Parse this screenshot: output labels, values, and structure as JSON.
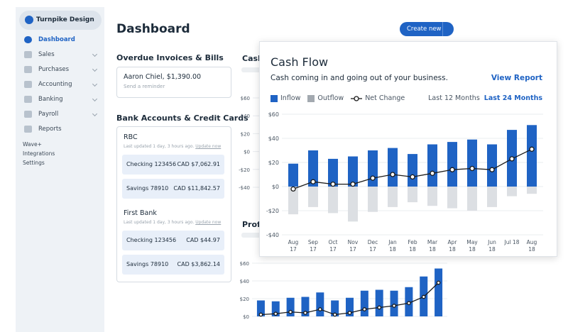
{
  "sidebar": {
    "brand": "Turnpike Design",
    "items": [
      "Dashboard",
      "Sales",
      "Purchases",
      "Accounting",
      "Banking",
      "Payroll",
      "Reports"
    ],
    "active": 0,
    "extras": [
      "Wave+",
      "Integrations",
      "Settings"
    ]
  },
  "header": {
    "title": "Dashboard",
    "button": "Create new"
  },
  "overdue": {
    "title": "Overdue Invoices & Bills",
    "item": "Aaron Chiel, $1,390.00",
    "action": "Send a reminder"
  },
  "banks": {
    "title": "Bank Accounts & Credit Cards",
    "list": [
      {
        "name": "RBC",
        "updated": "Last updated 1 day, 3 hours ago.",
        "update": "Update now",
        "accounts": [
          {
            "name": "Checking 123456",
            "balance": "CAD $7,062.91"
          },
          {
            "name": "Savings 78910",
            "balance": "CAD $11,842.57"
          }
        ]
      },
      {
        "name": "First Bank",
        "updated": "Last updated 1 day, 3 hours ago.",
        "update": "Update now",
        "accounts": [
          {
            "name": "Checking 123456",
            "balance": "CAD $44.97"
          },
          {
            "name": "Savings 78910",
            "balance": "CAD $3,862.14"
          }
        ]
      }
    ]
  },
  "cash_flow": {
    "subtitle": "Cash coming in and going out of your business.",
    "link": "View Report",
    "ranges": [
      "Last 12 Months",
      "Last 24 Months"
    ],
    "active_range": 1
  },
  "chart_data": [
    {
      "type": "bar",
      "title": "Cash Flow",
      "categories": [
        "Aug 17",
        "Sep 17",
        "Oct 17",
        "Nov 17",
        "Dec 17",
        "Jan 18",
        "Feb 18",
        "Mar 18",
        "Apr 18",
        "May 18",
        "Jun 18",
        "Jul 18",
        "Aug 18"
      ],
      "series": [
        {
          "name": "Inflow",
          "color": "#1f63c4",
          "values": [
            19,
            30,
            23,
            25,
            30,
            32,
            27,
            35,
            37,
            39,
            35,
            47,
            51
          ]
        },
        {
          "name": "Outflow",
          "color": "#dcdfe3",
          "values": [
            -23,
            -17,
            -22,
            -29,
            -21,
            -17,
            -13,
            -16,
            -18,
            -20,
            -17,
            -8,
            -6
          ]
        },
        {
          "name": "Net Change",
          "type": "line",
          "color": "#1a1a1a",
          "values": [
            -2,
            4,
            2,
            2,
            7,
            10,
            8,
            11,
            14,
            15,
            14,
            23,
            31
          ]
        }
      ],
      "ylim": [
        -40,
        60
      ],
      "yticks": [
        {
          "value": 60,
          "label": "$60"
        },
        {
          "value": 40,
          "label": "$40"
        },
        {
          "value": 20,
          "label": "$20"
        },
        {
          "value": 0,
          "label": "$0"
        },
        {
          "value": -20,
          "label": "-$20"
        },
        {
          "value": -40,
          "label": "-$40"
        }
      ],
      "grid": true
    },
    {
      "type": "bar",
      "title": "Cash",
      "ylim": [
        -40,
        60
      ],
      "yticks": [
        {
          "value": 60,
          "label": "$60"
        },
        {
          "value": 40,
          "label": "$40"
        },
        {
          "value": 20,
          "label": "$20"
        },
        {
          "value": 0,
          "label": "$0"
        },
        {
          "value": -20,
          "label": "-$20"
        },
        {
          "value": -40,
          "label": "-$40"
        }
      ],
      "grid": true
    },
    {
      "type": "bar",
      "title": "Profit",
      "series": [
        {
          "color": "#1f63c4",
          "values": [
            18,
            17,
            21,
            22,
            27,
            18,
            21,
            29,
            30,
            29,
            33,
            45,
            54
          ]
        },
        {
          "type": "line",
          "color": "#1a1a1a",
          "values": [
            2,
            3,
            5,
            4,
            8,
            2,
            4,
            8,
            10,
            12,
            15,
            22,
            38
          ]
        }
      ],
      "ylim": [
        -8,
        60
      ],
      "yticks": [
        {
          "value": 60,
          "label": "$60"
        },
        {
          "value": 40,
          "label": "$40"
        },
        {
          "value": 20,
          "label": "$20"
        },
        {
          "value": 0,
          "label": "$0"
        }
      ],
      "grid": true
    }
  ]
}
